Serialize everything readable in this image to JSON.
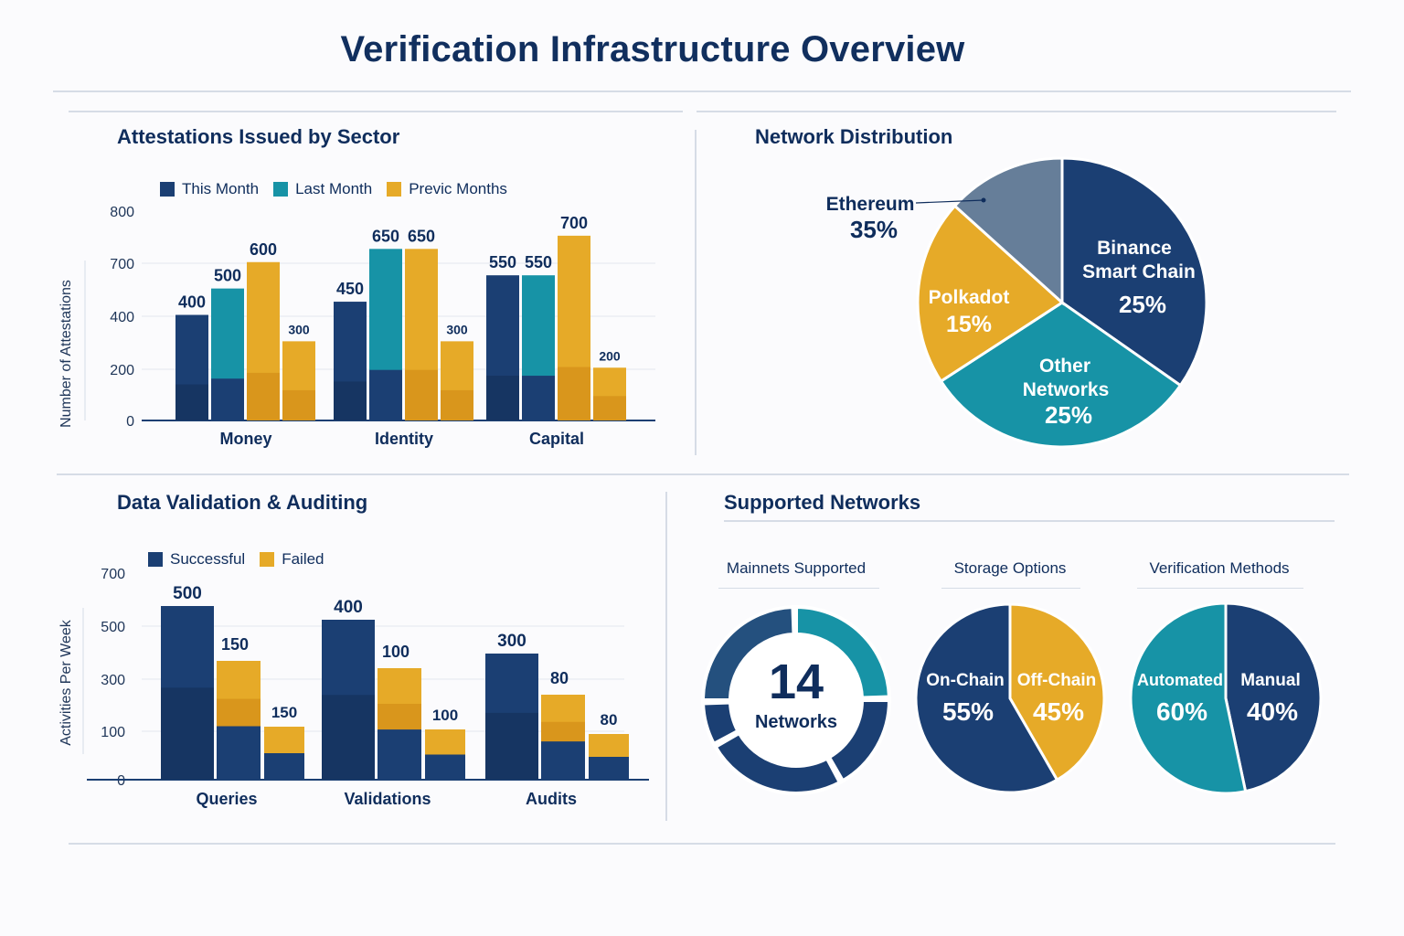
{
  "page": {
    "title": "Verification Infrastructure Overview"
  },
  "colors": {
    "navy": "#1b3f73",
    "navy_dark": "#163562",
    "teal": "#1793a6",
    "gold": "#e6aa28",
    "slate": "#667e99",
    "text": "#0f2d5c"
  },
  "chart_data": [
    {
      "id": "attestations",
      "type": "bar",
      "title": "Attestations Issued by Sector",
      "ylabel": "Number of Attestations",
      "xlabel": "",
      "categories": [
        "Money",
        "Identity",
        "Capital"
      ],
      "series": [
        {
          "name": "This Month",
          "values": [
            400,
            450,
            550
          ],
          "data_labels": [
            "400",
            "450",
            "550"
          ]
        },
        {
          "name": "Last Month",
          "values": [
            500,
            650,
            550
          ],
          "data_labels": [
            "500",
            "650",
            "550"
          ]
        },
        {
          "name": "Previc Months",
          "values": [
            600,
            650,
            700
          ],
          "data_labels": [
            "600",
            "650",
            "700"
          ]
        },
        {
          "name": "",
          "values": [
            300,
            300,
            200
          ],
          "data_labels": [
            "300",
            "300",
            "200"
          ]
        }
      ],
      "yticks": [
        "800",
        "700",
        "400",
        "200",
        "0"
      ],
      "ylim": [
        0,
        800
      ],
      "legend_position": "top",
      "grid": true
    },
    {
      "id": "network-distribution",
      "type": "pie",
      "title": "Network Distribution",
      "slices": [
        {
          "label": "Binance Smart Chain",
          "value": 25,
          "display": "25%"
        },
        {
          "label": "Other Networks",
          "value": 25,
          "display": "25%"
        },
        {
          "label": "Polkadot",
          "value": 15,
          "display": "15%"
        },
        {
          "label": "Ethereum",
          "value": 35,
          "display": "35%"
        }
      ]
    },
    {
      "id": "validation",
      "type": "bar",
      "title": "Data Validation & Auditing",
      "ylabel": "Activities Per Week",
      "xlabel": "",
      "categories": [
        "Queries",
        "Validations",
        "Audits"
      ],
      "series": [
        {
          "name": "Successful",
          "values": [
            500,
            400,
            300
          ],
          "data_labels": [
            "500",
            "400",
            "300"
          ]
        },
        {
          "name": "Failed",
          "values": [
            150,
            100,
            80
          ],
          "data_labels": [
            "150",
            "100",
            "80"
          ]
        },
        {
          "name": "",
          "values": [
            150,
            100,
            80
          ],
          "data_labels": [
            "150",
            "100",
            "80"
          ]
        }
      ],
      "yticks": [
        "700",
        "500",
        "300",
        "100",
        "0"
      ],
      "ylim": [
        0,
        700
      ],
      "legend_position": "top",
      "grid": true
    },
    {
      "id": "supported-networks",
      "type": "pie",
      "title": "Supported Networks",
      "groups": [
        {
          "label": "Mainnets Supported",
          "center_value": "14",
          "center_label": "Networks"
        },
        {
          "label": "Storage Options",
          "slices": [
            {
              "label": "On-Chain",
              "value": 55,
              "display": "55%"
            },
            {
              "label": "Off-Chain",
              "value": 45,
              "display": "45%"
            }
          ]
        },
        {
          "label": "Verification Methods",
          "slices": [
            {
              "label": "Automated",
              "value": 60,
              "display": "60%"
            },
            {
              "label": "Manual",
              "value": 40,
              "display": "40%"
            }
          ]
        }
      ]
    }
  ]
}
